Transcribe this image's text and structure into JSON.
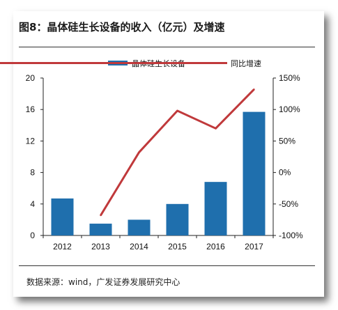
{
  "title": "图8：晶体硅生长设备的收入（亿元）及增速",
  "source": "数据来源：wind，广发证券发展研究中心",
  "colors": {
    "bar": "#1f6fad",
    "line": "#c0393b"
  },
  "chart_data": {
    "type": "bar",
    "categories": [
      "2012",
      "2013",
      "2014",
      "2015",
      "2016",
      "2017"
    ],
    "series": [
      {
        "name": "晶体硅生长设备",
        "type": "bar",
        "axis": "left",
        "values": [
          4.7,
          1.5,
          2.0,
          4.0,
          6.8,
          15.7
        ]
      },
      {
        "name": "同比增速",
        "type": "line",
        "axis": "right",
        "values": [
          null,
          -68,
          32,
          98,
          70,
          132
        ]
      }
    ],
    "ylim": [
      0,
      20
    ],
    "yticks": [
      "0",
      "4",
      "8",
      "12",
      "16",
      "20"
    ],
    "y2lim": [
      -100,
      150
    ],
    "y2ticks": [
      "-100%",
      "-50%",
      "0%",
      "50%",
      "100%",
      "150%"
    ],
    "legend": "top",
    "grid": false
  }
}
